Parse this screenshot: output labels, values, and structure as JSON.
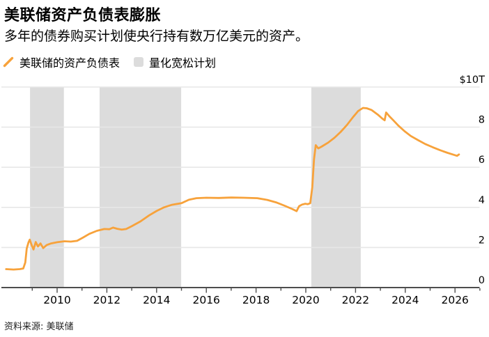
{
  "header": {
    "title": "美联储资产负债表膨胀",
    "subtitle": "多年的债券购买计划使央行持有数万亿美元的资产。"
  },
  "legend": [
    {
      "type": "line",
      "label": "美联储的资产负债表",
      "color": "#F7A23B"
    },
    {
      "type": "band",
      "label": "量化宽松计划",
      "color": "#DCDCDC"
    }
  ],
  "footer": {
    "source": "资料来源: 美联储"
  },
  "chart_data": {
    "type": "line",
    "title": "美联储资产负债表膨胀",
    "xlabel": "",
    "ylabel": "$10T",
    "xlim": [
      2008,
      2027.1
    ],
    "ylim": [
      0,
      10
    ],
    "grid": true,
    "legend_position": "top",
    "grid_color": "#E7E7E7",
    "axis_color": "#4D4D4D",
    "y_ticks": [
      {
        "value": 10,
        "label": "$10T"
      },
      {
        "value": 8,
        "label": "8"
      },
      {
        "value": 6,
        "label": "6"
      },
      {
        "value": 4,
        "label": "4"
      },
      {
        "value": 2,
        "label": "2"
      },
      {
        "value": 0,
        "label": "0"
      }
    ],
    "x_ticks_major": [
      2010,
      2012,
      2014,
      2016,
      2018,
      2020,
      2022,
      2024,
      2026
    ],
    "x_ticks_minor": [
      2009,
      2011,
      2013,
      2015,
      2017,
      2019,
      2021,
      2023,
      2025,
      2027
    ],
    "qe_bands": {
      "label": "量化宽松计划",
      "color": "#DCDCDC",
      "ranges": [
        [
          2008.91,
          2010.27
        ],
        [
          2011.71,
          2014.99
        ],
        [
          2020.22,
          2022.21
        ]
      ]
    },
    "series": [
      {
        "name": "美联储的资产负债表",
        "color": "#F7A23B",
        "unit": "trillion USD",
        "points": [
          [
            2007.95,
            0.92
          ],
          [
            2008.25,
            0.9
          ],
          [
            2008.5,
            0.92
          ],
          [
            2008.64,
            0.95
          ],
          [
            2008.72,
            1.25
          ],
          [
            2008.78,
            1.95
          ],
          [
            2008.85,
            2.25
          ],
          [
            2008.9,
            2.39
          ],
          [
            2008.98,
            2.1
          ],
          [
            2009.05,
            1.9
          ],
          [
            2009.14,
            2.27
          ],
          [
            2009.23,
            2.05
          ],
          [
            2009.33,
            2.2
          ],
          [
            2009.44,
            1.97
          ],
          [
            2009.58,
            2.12
          ],
          [
            2009.76,
            2.2
          ],
          [
            2010.0,
            2.26
          ],
          [
            2010.3,
            2.31
          ],
          [
            2010.55,
            2.29
          ],
          [
            2010.8,
            2.33
          ],
          [
            2011.05,
            2.5
          ],
          [
            2011.3,
            2.68
          ],
          [
            2011.6,
            2.83
          ],
          [
            2011.9,
            2.92
          ],
          [
            2012.1,
            2.91
          ],
          [
            2012.25,
            2.99
          ],
          [
            2012.42,
            2.93
          ],
          [
            2012.6,
            2.89
          ],
          [
            2012.78,
            2.92
          ],
          [
            2013.0,
            3.06
          ],
          [
            2013.35,
            3.3
          ],
          [
            2013.7,
            3.6
          ],
          [
            2014.0,
            3.82
          ],
          [
            2014.3,
            4.0
          ],
          [
            2014.62,
            4.13
          ],
          [
            2015.0,
            4.21
          ],
          [
            2015.3,
            4.38
          ],
          [
            2015.6,
            4.46
          ],
          [
            2016.0,
            4.48
          ],
          [
            2016.5,
            4.47
          ],
          [
            2017.0,
            4.49
          ],
          [
            2017.5,
            4.48
          ],
          [
            2018.05,
            4.46
          ],
          [
            2018.45,
            4.37
          ],
          [
            2018.8,
            4.25
          ],
          [
            2019.15,
            4.08
          ],
          [
            2019.45,
            3.92
          ],
          [
            2019.63,
            3.81
          ],
          [
            2019.73,
            4.06
          ],
          [
            2019.85,
            4.14
          ],
          [
            2019.98,
            4.18
          ],
          [
            2020.08,
            4.16
          ],
          [
            2020.18,
            4.21
          ],
          [
            2020.26,
            5.0
          ],
          [
            2020.33,
            6.4
          ],
          [
            2020.4,
            7.1
          ],
          [
            2020.5,
            6.94
          ],
          [
            2020.64,
            7.03
          ],
          [
            2020.9,
            7.23
          ],
          [
            2021.15,
            7.47
          ],
          [
            2021.4,
            7.76
          ],
          [
            2021.65,
            8.1
          ],
          [
            2021.9,
            8.5
          ],
          [
            2022.1,
            8.8
          ],
          [
            2022.3,
            8.96
          ],
          [
            2022.45,
            8.94
          ],
          [
            2022.65,
            8.85
          ],
          [
            2022.9,
            8.62
          ],
          [
            2023.08,
            8.42
          ],
          [
            2023.17,
            8.34
          ],
          [
            2023.23,
            8.73
          ],
          [
            2023.36,
            8.54
          ],
          [
            2023.52,
            8.34
          ],
          [
            2023.72,
            8.08
          ],
          [
            2023.97,
            7.8
          ],
          [
            2024.22,
            7.56
          ],
          [
            2024.5,
            7.36
          ],
          [
            2024.8,
            7.16
          ],
          [
            2025.1,
            7.0
          ],
          [
            2025.4,
            6.85
          ],
          [
            2025.7,
            6.72
          ],
          [
            2025.95,
            6.62
          ],
          [
            2026.08,
            6.57
          ],
          [
            2026.16,
            6.64
          ]
        ]
      }
    ]
  }
}
